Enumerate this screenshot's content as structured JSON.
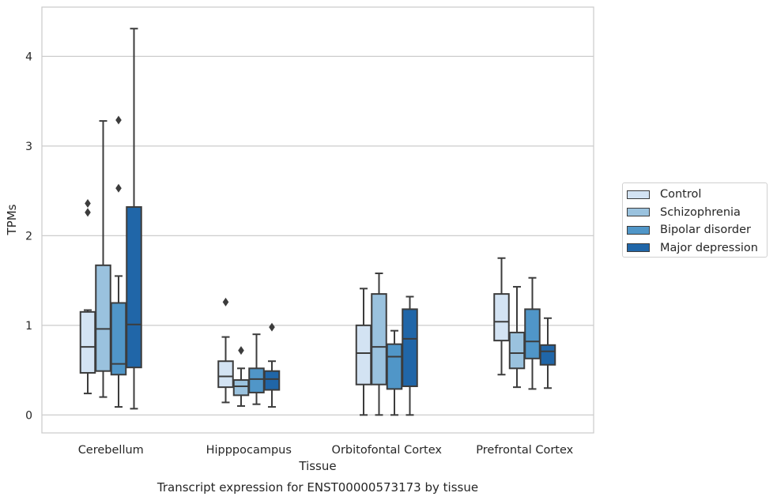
{
  "chart_data": {
    "type": "box",
    "title": "Transcript expression for ENST00000573173 by tissue",
    "xlabel": "Tissue",
    "ylabel": "TPMs",
    "ylim": [
      -0.2,
      4.55
    ],
    "yticks": [
      0,
      1,
      2,
      3,
      4
    ],
    "grid": "horizontal",
    "legend_position": "right",
    "categories": [
      "Cerebellum",
      "Hipppocampus",
      "Orbitofontal Cortex",
      "Prefrontal Cortex"
    ],
    "series": [
      {
        "name": "Control",
        "color": "#d3e3f3",
        "boxes": [
          {
            "min": 0.24,
            "q1": 0.47,
            "median": 0.76,
            "q3": 1.15,
            "max": 1.17,
            "outliers": [
              2.26,
              2.36
            ]
          },
          {
            "min": 0.14,
            "q1": 0.31,
            "median": 0.43,
            "q3": 0.6,
            "max": 0.87,
            "outliers": [
              1.26
            ]
          },
          {
            "min": 0.0,
            "q1": 0.34,
            "median": 0.69,
            "q3": 1.0,
            "max": 1.41,
            "outliers": []
          },
          {
            "min": 0.45,
            "q1": 0.83,
            "median": 1.04,
            "q3": 1.35,
            "max": 1.75,
            "outliers": []
          }
        ]
      },
      {
        "name": "Schizophrenia",
        "color": "#9ac2de",
        "boxes": [
          {
            "min": 0.2,
            "q1": 0.49,
            "median": 0.96,
            "q3": 1.67,
            "max": 3.28,
            "outliers": []
          },
          {
            "min": 0.1,
            "q1": 0.22,
            "median": 0.32,
            "q3": 0.39,
            "max": 0.52,
            "outliers": [
              0.72
            ]
          },
          {
            "min": 0.0,
            "q1": 0.34,
            "median": 0.76,
            "q3": 1.35,
            "max": 1.58,
            "outliers": []
          },
          {
            "min": 0.31,
            "q1": 0.52,
            "median": 0.69,
            "q3": 0.92,
            "max": 1.43,
            "outliers": []
          }
        ]
      },
      {
        "name": "Bipolar disorder",
        "color": "#5096c8",
        "boxes": [
          {
            "min": 0.09,
            "q1": 0.45,
            "median": 0.57,
            "q3": 1.25,
            "max": 1.55,
            "outliers": [
              2.53,
              3.29
            ]
          },
          {
            "min": 0.12,
            "q1": 0.25,
            "median": 0.4,
            "q3": 0.52,
            "max": 0.9,
            "outliers": []
          },
          {
            "min": 0.0,
            "q1": 0.29,
            "median": 0.65,
            "q3": 0.79,
            "max": 0.94,
            "outliers": []
          },
          {
            "min": 0.29,
            "q1": 0.63,
            "median": 0.82,
            "q3": 1.18,
            "max": 1.53,
            "outliers": []
          }
        ]
      },
      {
        "name": "Major depression",
        "color": "#2066a8",
        "boxes": [
          {
            "min": 0.07,
            "q1": 0.53,
            "median": 1.01,
            "q3": 2.32,
            "max": 4.31,
            "outliers": []
          },
          {
            "min": 0.09,
            "q1": 0.28,
            "median": 0.4,
            "q3": 0.49,
            "max": 0.6,
            "outliers": [
              0.98
            ]
          },
          {
            "min": 0.0,
            "q1": 0.32,
            "median": 0.85,
            "q3": 1.18,
            "max": 1.32,
            "outliers": []
          },
          {
            "min": 0.3,
            "q1": 0.56,
            "median": 0.71,
            "q3": 0.78,
            "max": 1.08,
            "outliers": []
          }
        ]
      }
    ]
  }
}
